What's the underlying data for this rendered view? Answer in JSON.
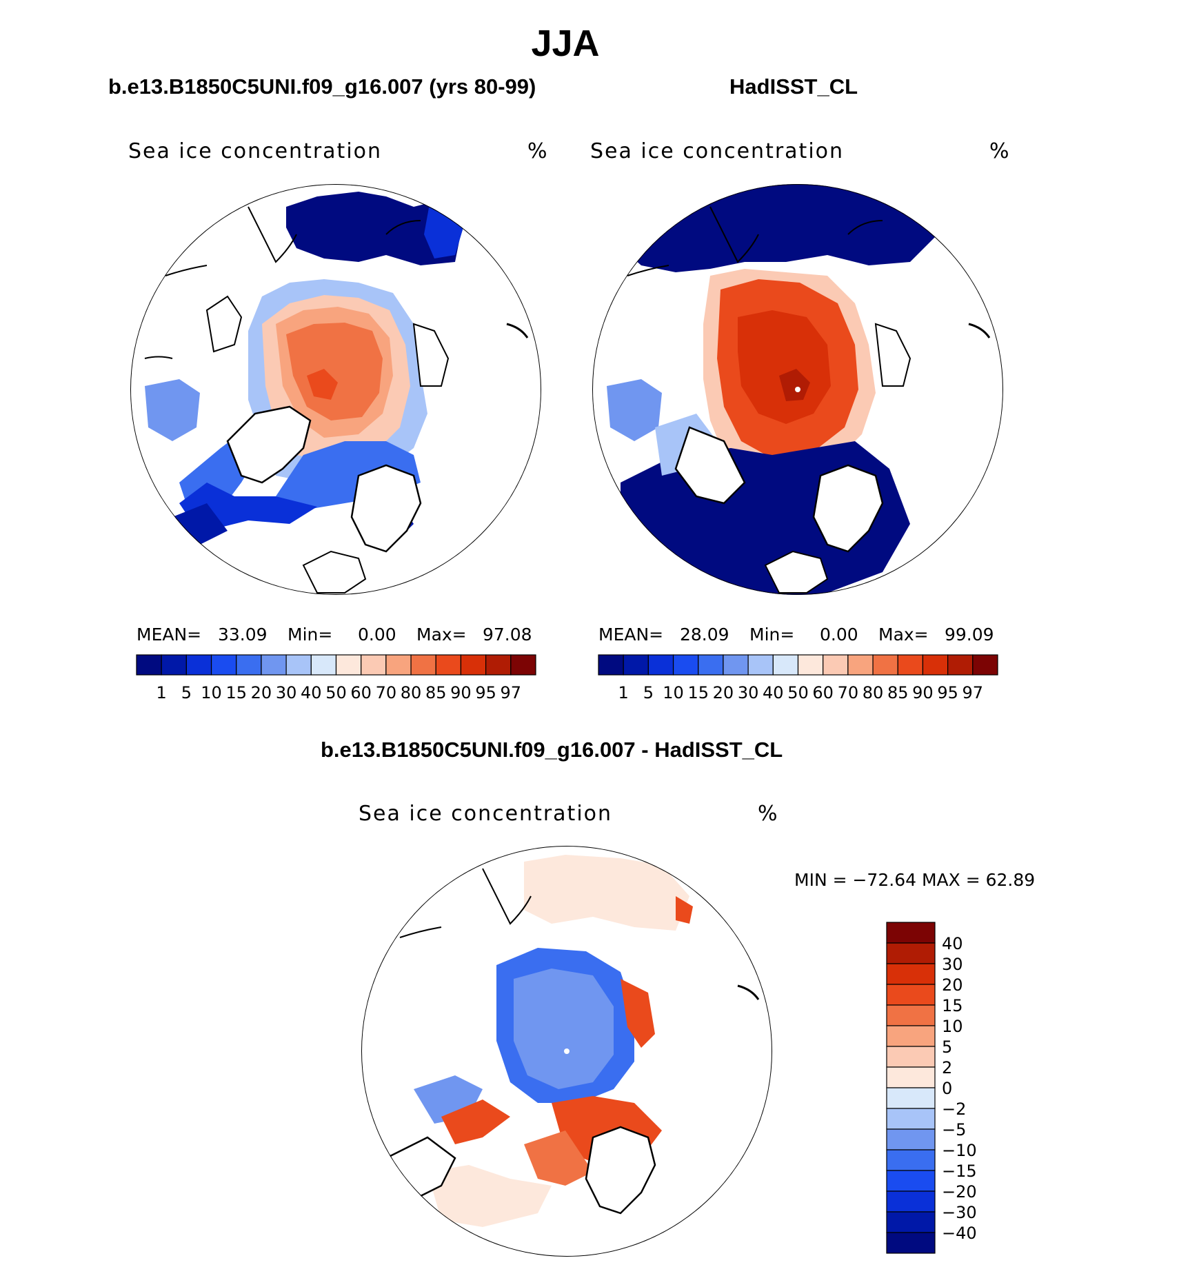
{
  "main_title": "JJA",
  "colors": {
    "seq": [
      "#000a80",
      "#0018a8",
      "#0a30d8",
      "#1a4cf0",
      "#3a6ef0",
      "#7096f0",
      "#a8c4f8",
      "#d8e8fa",
      "#fde8dc",
      "#fbcab4",
      "#f8a47e",
      "#f07244",
      "#ea4a1c",
      "#d83008",
      "#b01c04",
      "#7c0404"
    ],
    "diff": [
      "#000a80",
      "#0018a8",
      "#0a30d8",
      "#1a4cf0",
      "#3a6ef0",
      "#7096f0",
      "#a8c4f8",
      "#d8e8fa",
      "#fde8dc",
      "#fbcab4",
      "#f8a47e",
      "#f07244",
      "#ea4a1c",
      "#d83008",
      "#b01c04",
      "#7c0404"
    ]
  },
  "panels": [
    {
      "title": "b.e13.B1850C5UNI.f09_g16.007 (yrs 80-99)",
      "var_label": "Sea ice concentration",
      "units": "%",
      "mean_label": "MEAN=",
      "mean_value": "33.09",
      "min_label": "Min=",
      "min_value": "0.00",
      "max_label": "Max=",
      "max_value": "97.08"
    },
    {
      "title": "HadISST_CL",
      "var_label": "Sea ice concentration",
      "units": "%",
      "mean_label": "MEAN=",
      "mean_value": "28.09",
      "min_label": "Min=",
      "min_value": "0.00",
      "max_label": "Max=",
      "max_value": "99.09"
    }
  ],
  "diff_panel": {
    "title": "b.e13.B1850C5UNI.f09_g16.007 - HadISST_CL",
    "var_label": "Sea ice concentration",
    "units": "%",
    "minmax_text": "MIN = −72.64  MAX =   62.89"
  },
  "chart_data": [
    {
      "type": "heatmap",
      "title": "b.e13.B1850C5UNI.f09_g16.007 (yrs 80-99)",
      "projection": "north polar stereographic",
      "variable": "Sea ice concentration",
      "units": "%",
      "stats": {
        "mean": 33.09,
        "min": 0.0,
        "max": 97.08
      },
      "colorbar_levels": [
        "1",
        "5",
        "10",
        "15",
        "20",
        "30",
        "40",
        "50",
        "60",
        "70",
        "80",
        "85",
        "90",
        "95",
        "97"
      ]
    },
    {
      "type": "heatmap",
      "title": "HadISST_CL",
      "projection": "north polar stereographic",
      "variable": "Sea ice concentration",
      "units": "%",
      "stats": {
        "mean": 28.09,
        "min": 0.0,
        "max": 99.09
      },
      "colorbar_levels": [
        "1",
        "5",
        "10",
        "15",
        "20",
        "30",
        "40",
        "50",
        "60",
        "70",
        "80",
        "85",
        "90",
        "95",
        "97"
      ]
    },
    {
      "type": "heatmap",
      "title": "b.e13.B1850C5UNI.f09_g16.007 - HadISST_CL",
      "projection": "north polar stereographic",
      "variable": "Sea ice concentration",
      "units": "%",
      "stats": {
        "min": -72.64,
        "max": 62.89
      },
      "colorbar_levels": [
        "40",
        "30",
        "20",
        "15",
        "10",
        "5",
        "2",
        "0",
        "−2",
        "−5",
        "−10",
        "−15",
        "−20",
        "−30",
        "−40"
      ]
    }
  ]
}
